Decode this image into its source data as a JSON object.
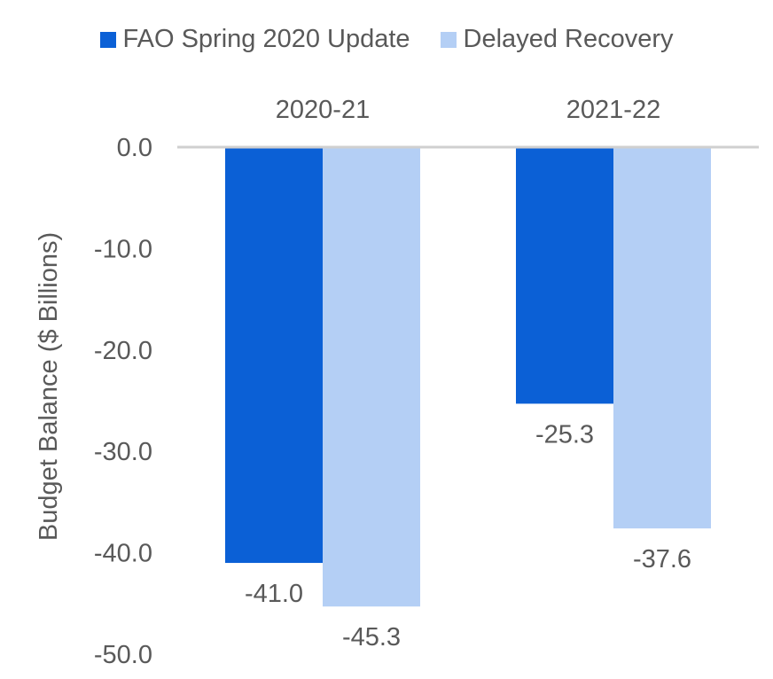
{
  "chart_data": {
    "type": "bar",
    "categories": [
      "2020-21",
      "2021-22"
    ],
    "series": [
      {
        "name": "FAO Spring 2020 Update",
        "values": [
          -41.0,
          -25.3
        ],
        "color": "#0b60d6"
      },
      {
        "name": "Delayed Recovery",
        "values": [
          -45.3,
          -37.6
        ],
        "color": "#b4cff5"
      }
    ],
    "data_labels": [
      [
        "-41.0",
        "-25.3"
      ],
      [
        "-45.3",
        "-37.6"
      ]
    ],
    "ylabel": "Budget Balance ($ Billions)",
    "xlabel": "",
    "ylim": [
      -50,
      0
    ],
    "yticks": [
      0,
      -10,
      -20,
      -30,
      -40,
      -50
    ],
    "ytick_labels": [
      "0.0",
      "-10.0",
      "-20.0",
      "-30.0",
      "-40.0",
      "-50.0"
    ],
    "category_axis_position": "top",
    "legend_position": "top",
    "grid": false
  }
}
